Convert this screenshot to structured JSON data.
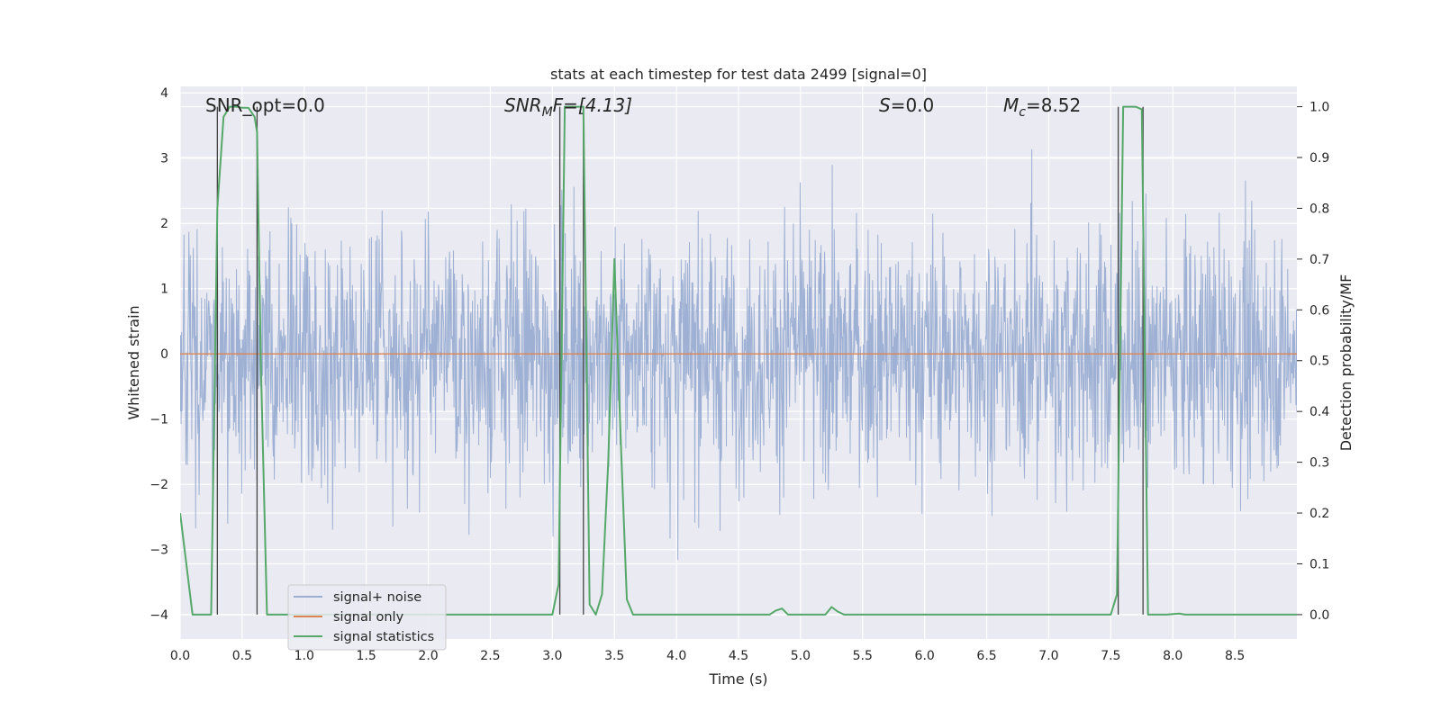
{
  "chart_data": {
    "type": "line",
    "title": "stats at each timestep for test data 2499 [signal=0]",
    "xlabel": "Time (s)",
    "ylabel_left": "Whitened strain",
    "ylabel_right": "Detection probability/MF",
    "xlim": [
      0.0,
      9.0
    ],
    "ylim_left": [
      -4.37,
      4.1
    ],
    "ylim_right": [
      -0.048,
      1.04
    ],
    "x_ticks": [
      "0.0",
      "0.5",
      "1.0",
      "1.5",
      "2.0",
      "2.5",
      "3.0",
      "3.5",
      "4.0",
      "4.5",
      "5.0",
      "5.5",
      "6.0",
      "6.5",
      "7.0",
      "7.5",
      "8.0",
      "8.5"
    ],
    "y_ticks_left": [
      "−4",
      "−3",
      "−2",
      "−1",
      "0",
      "1",
      "2",
      "3",
      "4"
    ],
    "y_ticks_right": [
      "0.0",
      "0.1",
      "0.2",
      "0.3",
      "0.4",
      "0.5",
      "0.6",
      "0.7",
      "0.8",
      "0.9",
      "1.0"
    ],
    "grid": true,
    "legend_position": "lower-left",
    "annotations": {
      "snr_opt": "SNR_opt=0.0",
      "snr_mf_main": "SNR",
      "snr_mf_sub": "M",
      "snr_mf_tail": "F=[4.13]",
      "s_main": "S",
      "s_tail": "=0.0",
      "mc_main": "M",
      "mc_sub": "c",
      "mc_tail": "=8.52"
    },
    "detection_markers": [
      0.3,
      0.62,
      3.06,
      3.25,
      7.56,
      7.76
    ],
    "series": [
      {
        "name": "signal+ noise",
        "color": "#9aaed2",
        "axis": "left",
        "envelope": "noise band, approx amplitude 1.7 with peaks to ±3.5"
      },
      {
        "name": "signal only",
        "color": "#dd8452",
        "axis": "left",
        "x": [
          0.0,
          9.0
        ],
        "y": [
          0.0,
          0.0
        ]
      },
      {
        "name": "signal statistics",
        "color": "#55a868",
        "axis": "right",
        "x": [
          0.0,
          0.05,
          0.1,
          0.15,
          0.2,
          0.25,
          0.3,
          0.35,
          0.4,
          0.45,
          0.5,
          0.55,
          0.6,
          0.62,
          0.65,
          0.7,
          0.75,
          1.0,
          1.5,
          2.0,
          2.5,
          3.0,
          3.05,
          3.1,
          3.15,
          3.2,
          3.25,
          3.3,
          3.35,
          3.4,
          3.45,
          3.5,
          3.55,
          3.6,
          3.65,
          4.0,
          4.5,
          4.75,
          4.8,
          4.85,
          4.9,
          4.95,
          5.0,
          5.1,
          5.2,
          5.25,
          5.3,
          5.35,
          5.4,
          5.5,
          6.0,
          6.5,
          7.0,
          7.5,
          7.55,
          7.6,
          7.65,
          7.7,
          7.75,
          7.8,
          7.85,
          7.95,
          8.05,
          8.1,
          8.2,
          8.5,
          9.0
        ],
        "y": [
          0.2,
          0.1,
          0.0,
          0.0,
          0.0,
          0.0,
          0.8,
          0.98,
          1.0,
          1.0,
          0.998,
          0.998,
          0.98,
          0.95,
          0.5,
          0.0,
          0.0,
          0.0,
          0.0,
          0.0,
          0.0,
          0.0,
          0.06,
          1.0,
          1.0,
          1.0,
          1.0,
          0.02,
          0.0,
          0.04,
          0.3,
          0.7,
          0.35,
          0.03,
          0.0,
          0.0,
          0.0,
          0.0,
          0.008,
          0.012,
          0.0,
          0.0,
          0.0,
          0.0,
          0.0,
          0.015,
          0.006,
          0.0,
          0.0,
          0.0,
          0.0,
          0.0,
          0.0,
          0.0,
          0.04,
          1.0,
          1.0,
          1.0,
          0.995,
          0.0,
          0.0,
          0.0,
          0.002,
          0.0,
          0.0,
          0.0,
          0.0
        ]
      }
    ]
  }
}
